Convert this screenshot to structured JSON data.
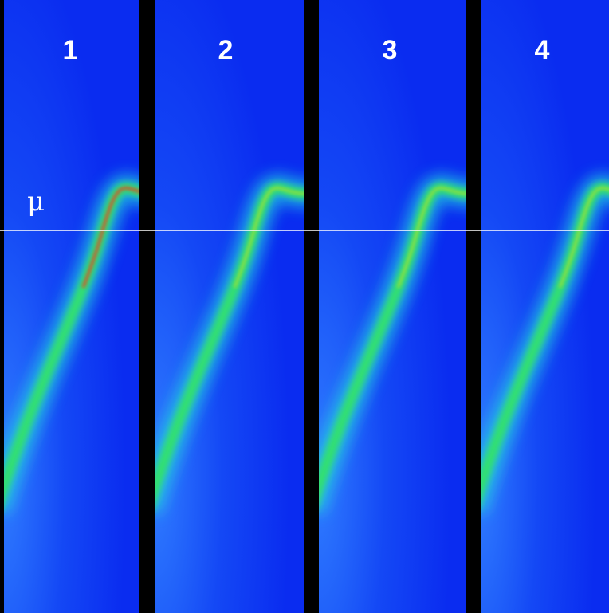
{
  "panels": [
    {
      "label": "1"
    },
    {
      "label": "2"
    },
    {
      "label": "3"
    },
    {
      "label": "4"
    }
  ],
  "mu_label": "μ"
}
